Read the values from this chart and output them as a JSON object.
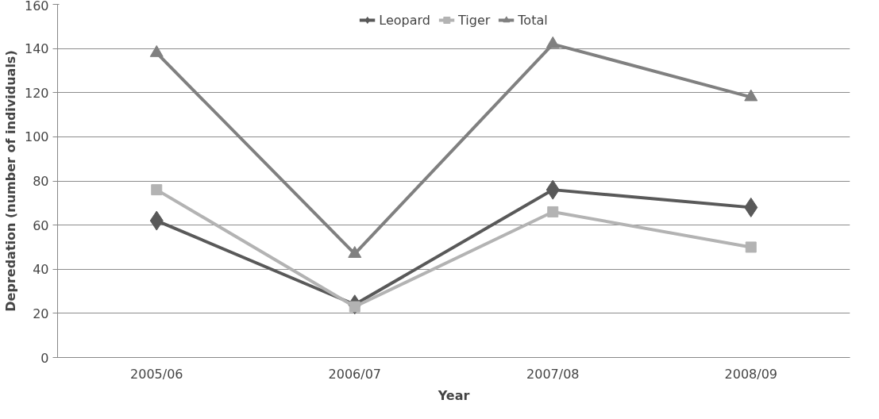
{
  "chart_data": {
    "type": "line",
    "xlabel": "Year",
    "ylabel": "Depredation (number of individuals)",
    "categories": [
      "2005/06",
      "2006/07",
      "2007/08",
      "2008/09"
    ],
    "series": [
      {
        "name": "Leopard",
        "color": "#595959",
        "marker": "diamond",
        "values": [
          62,
          24,
          76,
          68
        ]
      },
      {
        "name": "Tiger",
        "color": "#b3b3b3",
        "marker": "square",
        "values": [
          76,
          23,
          66,
          50
        ]
      },
      {
        "name": "Total",
        "color": "#808080",
        "marker": "triangle",
        "values": [
          138,
          47,
          142,
          118
        ]
      }
    ],
    "ylim": [
      0,
      160
    ],
    "yticks": [
      0,
      20,
      40,
      60,
      80,
      100,
      120,
      140,
      160
    ],
    "grid": "y",
    "legend": "top",
    "line_style": "solid"
  }
}
